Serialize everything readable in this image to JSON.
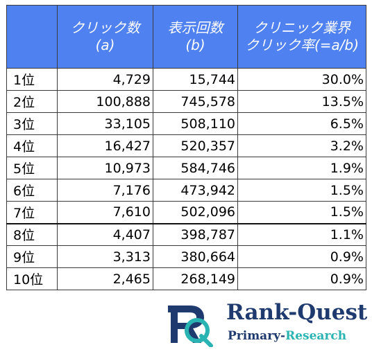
{
  "table": {
    "headers": {
      "rank": "",
      "clicks": [
        "クリック数",
        "(a)"
      ],
      "impressions": [
        "表示回数",
        "(b)"
      ],
      "ctr": [
        "クリニック業界",
        "クリック率(=a/b)"
      ]
    },
    "rows": [
      {
        "rank": "1位",
        "clicks": "4,729",
        "impressions": "15,744",
        "ctr": "30.0%"
      },
      {
        "rank": "2位",
        "clicks": "100,888",
        "impressions": "745,578",
        "ctr": "13.5%"
      },
      {
        "rank": "3位",
        "clicks": "33,105",
        "impressions": "508,110",
        "ctr": "6.5%"
      },
      {
        "rank": "4位",
        "clicks": "16,427",
        "impressions": "520,357",
        "ctr": "3.2%"
      },
      {
        "rank": "5位",
        "clicks": "10,973",
        "impressions": "584,746",
        "ctr": "1.9%"
      },
      {
        "rank": "6位",
        "clicks": "7,176",
        "impressions": "473,942",
        "ctr": "1.5%"
      },
      {
        "rank": "7位",
        "clicks": "7,610",
        "impressions": "502,096",
        "ctr": "1.5%"
      },
      {
        "rank": "8位",
        "clicks": "4,407",
        "impressions": "398,787",
        "ctr": "1.1%"
      },
      {
        "rank": "9位",
        "clicks": "3,313",
        "impressions": "380,664",
        "ctr": "0.9%"
      },
      {
        "rank": "10位",
        "clicks": "2,465",
        "impressions": "268,149",
        "ctr": "0.9%"
      }
    ],
    "header_color": "#4f81f0"
  },
  "logo": {
    "title_part1": "Rank-",
    "title_part2": "Quest",
    "subtitle_part1": "Primary-",
    "subtitle_part2": "Research",
    "navy_color": "#1e3a6e",
    "teal_color": "#2ab3b3"
  }
}
